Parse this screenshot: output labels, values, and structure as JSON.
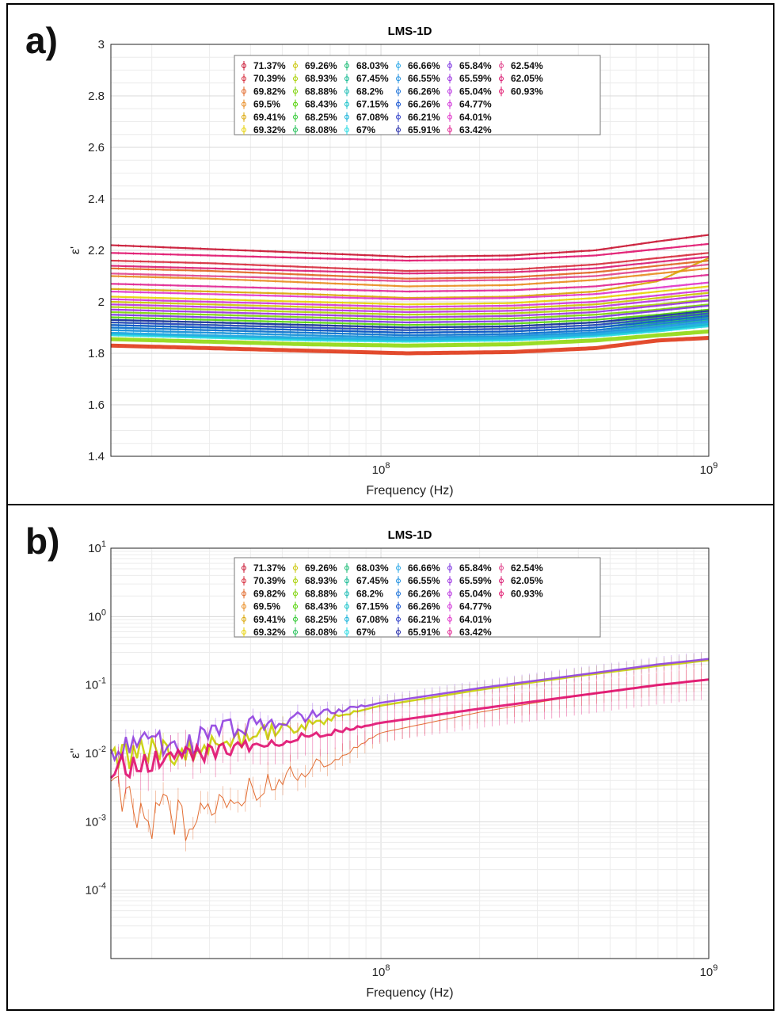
{
  "panels": [
    {
      "label": "a)"
    },
    {
      "label": "b)"
    }
  ],
  "chart_data": [
    {
      "type": "line",
      "title": "LMS-1D",
      "xlabel": "Frequency (Hz)",
      "ylabel": "ε'",
      "x_scale": "log",
      "y_scale": "linear",
      "xlim": [
        15000000,
        1000000000
      ],
      "ylim": [
        1.4,
        3
      ],
      "x_tick_labels": [
        "10^8",
        "10^9"
      ],
      "y_tick_labels": [
        "1.4",
        "1.6",
        "1.8",
        "2",
        "2.2",
        "2.4",
        "2.6",
        "2.8",
        "3"
      ],
      "grid": true,
      "legend_position": "top-center",
      "x": [
        15000000,
        30000000,
        60000000,
        120000000,
        250000000,
        450000000,
        700000000,
        1000000000
      ],
      "series": [
        {
          "name": "71.37%",
          "color": "#c8102e",
          "values": [
            2.22,
            2.205,
            2.19,
            2.175,
            2.18,
            2.2,
            2.235,
            2.26
          ]
        },
        {
          "name": "70.39%",
          "color": "#d62839",
          "values": [
            2.16,
            2.15,
            2.135,
            2.12,
            2.125,
            2.145,
            2.17,
            2.19
          ]
        },
        {
          "name": "69.82%",
          "color": "#e0601e",
          "values": [
            2.13,
            2.12,
            2.105,
            2.09,
            2.095,
            2.115,
            2.14,
            2.16
          ]
        },
        {
          "name": "69.5%",
          "color": "#e8891c",
          "values": [
            2.1,
            2.09,
            2.075,
            2.06,
            2.065,
            2.085,
            2.11,
            2.13
          ]
        },
        {
          "name": "69.41%",
          "color": "#d9a400",
          "values": [
            2.05,
            2.04,
            2.03,
            2.015,
            2.02,
            2.04,
            2.08,
            2.17
          ]
        },
        {
          "name": "69.32%",
          "color": "#e6d000",
          "values": [
            2.02,
            2.01,
            2.0,
            1.99,
            1.995,
            2.015,
            2.04,
            2.06
          ]
        },
        {
          "name": "69.26%",
          "color": "#c9c400",
          "values": [
            2.0,
            1.99,
            1.98,
            1.97,
            1.975,
            1.99,
            2.015,
            2.035
          ]
        },
        {
          "name": "68.93%",
          "color": "#a8d000",
          "values": [
            1.98,
            1.97,
            1.96,
            1.95,
            1.955,
            1.97,
            1.99,
            2.01
          ]
        },
        {
          "name": "68.88%",
          "color": "#7ad100",
          "values": [
            1.96,
            1.95,
            1.94,
            1.93,
            1.935,
            1.95,
            1.97,
            1.99
          ]
        },
        {
          "name": "68.43%",
          "color": "#4fd000",
          "values": [
            1.94,
            1.93,
            1.92,
            1.91,
            1.915,
            1.93,
            1.95,
            1.97
          ]
        },
        {
          "name": "68.25%",
          "color": "#2fc832",
          "values": [
            1.93,
            1.92,
            1.91,
            1.9,
            1.905,
            1.92,
            1.94,
            1.96
          ]
        },
        {
          "name": "68.08%",
          "color": "#1fbf55",
          "values": [
            1.92,
            1.91,
            1.9,
            1.89,
            1.895,
            1.91,
            1.93,
            1.95
          ]
        },
        {
          "name": "68.03%",
          "color": "#12b870",
          "values": [
            1.91,
            1.9,
            1.89,
            1.88,
            1.885,
            1.9,
            1.92,
            1.94
          ]
        },
        {
          "name": "67.45%",
          "color": "#10b890",
          "values": [
            1.9,
            1.89,
            1.88,
            1.87,
            1.875,
            1.89,
            1.91,
            1.93
          ]
        },
        {
          "name": "68.2%",
          "color": "#10b8b0",
          "values": [
            1.89,
            1.88,
            1.87,
            1.86,
            1.865,
            1.88,
            1.9,
            1.92
          ]
        },
        {
          "name": "67.15%",
          "color": "#10c0c8",
          "values": [
            1.88,
            1.87,
            1.86,
            1.855,
            1.86,
            1.875,
            1.895,
            1.915
          ]
        },
        {
          "name": "67.08%",
          "color": "#10b0d8",
          "values": [
            1.875,
            1.865,
            1.855,
            1.85,
            1.855,
            1.87,
            1.89,
            1.91
          ]
        },
        {
          "name": "67%",
          "color": "#20d8e0",
          "values": [
            1.87,
            1.86,
            1.85,
            1.845,
            1.85,
            1.865,
            1.885,
            1.905
          ]
        },
        {
          "name": "66.66%",
          "color": "#2aa8e8",
          "values": [
            1.88,
            1.87,
            1.862,
            1.855,
            1.86,
            1.875,
            1.9,
            1.92
          ]
        },
        {
          "name": "66.55%",
          "color": "#2090e0",
          "values": [
            1.89,
            1.88,
            1.87,
            1.862,
            1.868,
            1.882,
            1.905,
            1.925
          ]
        },
        {
          "name": "66.26%",
          "color": "#1870d8",
          "values": [
            1.9,
            1.89,
            1.88,
            1.87,
            1.875,
            1.89,
            1.915,
            1.935
          ]
        },
        {
          "name": "66.26%",
          "color": "#1050d0",
          "values": [
            1.91,
            1.9,
            1.89,
            1.88,
            1.885,
            1.9,
            1.925,
            1.945
          ]
        },
        {
          "name": "66.21%",
          "color": "#3040c8",
          "values": [
            1.92,
            1.91,
            1.9,
            1.89,
            1.895,
            1.91,
            1.935,
            1.955
          ]
        },
        {
          "name": "65.91%",
          "color": "#2028a8",
          "values": [
            1.93,
            1.92,
            1.91,
            1.9,
            1.905,
            1.92,
            1.945,
            1.965
          ]
        },
        {
          "name": "65.84%",
          "color": "#7a30e0",
          "values": [
            1.95,
            1.94,
            1.93,
            1.92,
            1.925,
            1.94,
            1.965,
            1.985
          ]
        },
        {
          "name": "65.59%",
          "color": "#9a2ee0",
          "values": [
            1.97,
            1.96,
            1.95,
            1.94,
            1.945,
            1.96,
            1.985,
            2.005
          ]
        },
        {
          "name": "65.04%",
          "color": "#b830e0",
          "values": [
            1.99,
            1.98,
            1.97,
            1.96,
            1.965,
            1.98,
            2.005,
            2.025
          ]
        },
        {
          "name": "64.77%",
          "color": "#d030d8",
          "values": [
            2.01,
            2.0,
            1.99,
            1.98,
            1.985,
            2.0,
            2.025,
            2.045
          ]
        },
        {
          "name": "64.01%",
          "color": "#e030c8",
          "values": [
            2.04,
            2.03,
            2.02,
            2.01,
            2.015,
            2.03,
            2.055,
            2.075
          ]
        },
        {
          "name": "63.42%",
          "color": "#e02090",
          "values": [
            2.07,
            2.06,
            2.05,
            2.04,
            2.045,
            2.06,
            2.085,
            2.105
          ]
        },
        {
          "name": "62.54%",
          "color": "#e0408a",
          "values": [
            2.11,
            2.1,
            2.09,
            2.08,
            2.085,
            2.1,
            2.125,
            2.145
          ]
        },
        {
          "name": "62.05%",
          "color": "#d81870",
          "values": [
            2.14,
            2.13,
            2.12,
            2.11,
            2.115,
            2.13,
            2.155,
            2.175
          ]
        },
        {
          "name": "60.93%",
          "color": "#e0106a",
          "values": [
            2.19,
            2.18,
            2.17,
            2.16,
            2.165,
            2.18,
            2.205,
            2.225
          ]
        }
      ],
      "band_bottom": {
        "color": "#e03818",
        "values": [
          1.83,
          1.82,
          1.81,
          1.8,
          1.805,
          1.82,
          1.85,
          1.86
        ]
      },
      "band_bottom2": {
        "color": "#90d810",
        "values": [
          1.855,
          1.845,
          1.835,
          1.83,
          1.835,
          1.85,
          1.87,
          1.885
        ]
      }
    },
    {
      "type": "line",
      "title": "LMS-1D",
      "xlabel": "Frequency (Hz)",
      "ylabel": "ε''",
      "x_scale": "log",
      "y_scale": "log",
      "xlim": [
        15000000,
        1000000000
      ],
      "ylim": [
        1e-05,
        10
      ],
      "x_tick_labels": [
        "10^8",
        "10^9"
      ],
      "y_tick_labels": [
        "10^-4",
        "10^-3",
        "10^-2",
        "10^-1",
        "10^0",
        "10^1"
      ],
      "grid": true,
      "legend_position": "top-center",
      "x": [
        15000000,
        25000000,
        40000000,
        70000000,
        100000000,
        200000000,
        400000000,
        700000000,
        1000000000
      ],
      "upper_group": {
        "color": "#9040e0",
        "values": [
          0.012,
          0.015,
          0.025,
          0.04,
          0.055,
          0.09,
          0.14,
          0.2,
          0.24
        ]
      },
      "upper_group2": {
        "color": "#c8d000",
        "values": [
          0.008,
          0.011,
          0.018,
          0.032,
          0.05,
          0.085,
          0.135,
          0.19,
          0.23
        ]
      },
      "lower_group": {
        "color": "#e01070",
        "values": [
          0.006,
          0.009,
          0.013,
          0.02,
          0.028,
          0.045,
          0.07,
          0.1,
          0.12
        ]
      },
      "scatter_low": {
        "color": "#e06020",
        "values": [
          0.002,
          0.001,
          0.003,
          0.008,
          0.02,
          0.04,
          0.07,
          0.1,
          0.12
        ]
      }
    }
  ],
  "legend_names": [
    [
      "71.37%",
      "70.39%",
      "69.82%",
      "69.5%",
      "69.41%",
      "69.32%"
    ],
    [
      "69.26%",
      "68.93%",
      "68.88%",
      "68.43%",
      "68.25%",
      "68.08%"
    ],
    [
      "68.03%",
      "67.45%",
      "68.2%",
      "67.15%",
      "67.08%",
      "67%"
    ],
    [
      "66.66%",
      "66.55%",
      "66.26%",
      "66.26%",
      "66.21%",
      "65.91%"
    ],
    [
      "65.84%",
      "65.59%",
      "65.04%",
      "64.77%",
      "64.01%",
      "63.42%"
    ],
    [
      "62.54%",
      "62.05%",
      "60.93%"
    ]
  ],
  "legend_colors": [
    [
      "#c8102e",
      "#d62839",
      "#e0601e",
      "#e8891c",
      "#d9a400",
      "#e6d000"
    ],
    [
      "#c9c400",
      "#a8d000",
      "#7ad100",
      "#4fd000",
      "#2fc832",
      "#1fbf55"
    ],
    [
      "#12b870",
      "#10b890",
      "#10b8b0",
      "#10c0c8",
      "#10b0d8",
      "#20d8e0"
    ],
    [
      "#2aa8e8",
      "#2090e0",
      "#1870d8",
      "#1050d0",
      "#3040c8",
      "#2028a8"
    ],
    [
      "#7a30e0",
      "#9a2ee0",
      "#b830e0",
      "#d030d8",
      "#e030c8",
      "#e02090"
    ],
    [
      "#e0408a",
      "#d81870",
      "#e0106a"
    ]
  ]
}
